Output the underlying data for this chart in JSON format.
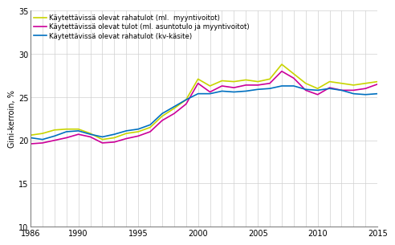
{
  "years": [
    1986,
    1987,
    1988,
    1989,
    1990,
    1991,
    1992,
    1993,
    1994,
    1995,
    1996,
    1997,
    1998,
    1999,
    2000,
    2001,
    2002,
    2003,
    2004,
    2005,
    2006,
    2007,
    2008,
    2009,
    2010,
    2011,
    2012,
    2013,
    2014,
    2015
  ],
  "series1": [
    20.6,
    20.8,
    21.2,
    21.3,
    21.3,
    20.8,
    20.1,
    20.3,
    20.8,
    21.0,
    21.5,
    22.8,
    23.7,
    24.7,
    27.1,
    26.3,
    26.9,
    26.8,
    27.0,
    26.8,
    27.1,
    28.8,
    27.7,
    26.6,
    26.0,
    26.8,
    26.6,
    26.4,
    26.6,
    26.8
  ],
  "series2": [
    19.6,
    19.7,
    20.0,
    20.3,
    20.7,
    20.4,
    19.7,
    19.8,
    20.2,
    20.5,
    21.0,
    22.3,
    23.1,
    24.2,
    26.6,
    25.6,
    26.3,
    26.1,
    26.4,
    26.4,
    26.6,
    28.0,
    27.2,
    25.8,
    25.3,
    26.1,
    25.8,
    25.8,
    26.0,
    26.5
  ],
  "series3": [
    20.3,
    20.1,
    20.5,
    21.0,
    21.1,
    20.7,
    20.4,
    20.7,
    21.1,
    21.3,
    21.8,
    23.1,
    23.9,
    24.7,
    25.4,
    25.4,
    25.7,
    25.6,
    25.7,
    25.9,
    26.0,
    26.3,
    26.3,
    25.9,
    25.8,
    26.0,
    25.8,
    25.4,
    25.3,
    25.4
  ],
  "color1": "#c8d400",
  "color2": "#cc0099",
  "color3": "#0070c0",
  "label1": "Käytettävissä olevat rahatulot (ml.  myyntivoitot)",
  "label2": "Käytettävissä olevat tulot (ml. asuntotulo ja myyntivoitot)",
  "label3": "Käytettävissä olevat rahatulot (kv-käsite)",
  "ylabel": "Gini-kerroin, %",
  "ylim": [
    10,
    35
  ],
  "yticks": [
    10,
    15,
    20,
    25,
    30,
    35
  ],
  "xlim": [
    1986,
    2015
  ],
  "xticks": [
    1986,
    1990,
    1995,
    2000,
    2005,
    2010,
    2015
  ],
  "linewidth": 1.2,
  "background_color": "#ffffff",
  "grid_color": "#d0d0d0"
}
